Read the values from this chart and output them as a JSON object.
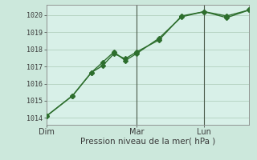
{
  "xlabel": "Pression niveau de la mer( hPa )",
  "bg_color": "#cce8dc",
  "plot_bg_color": "#d8f0e8",
  "grid_color": "#b8d4c4",
  "line_color": "#2d6e2d",
  "axis_color": "#3a3a3a",
  "ylim": [
    1013.6,
    1020.6
  ],
  "xlim": [
    0,
    108
  ],
  "yticks": [
    1014,
    1015,
    1016,
    1017,
    1018,
    1019,
    1020
  ],
  "day_labels": [
    "Dim",
    "Mar",
    "Lun"
  ],
  "day_positions": [
    0,
    48,
    84
  ],
  "vline_positions": [
    48,
    84
  ],
  "series1_x": [
    0,
    14,
    24,
    30,
    36,
    42,
    48,
    60,
    72,
    84,
    96,
    108
  ],
  "series1_y": [
    1014.1,
    1015.3,
    1016.65,
    1017.05,
    1017.75,
    1017.45,
    1017.85,
    1018.55,
    1019.95,
    1020.2,
    1019.85,
    1020.3
  ],
  "series2_x": [
    0,
    14,
    24,
    30,
    36,
    42,
    48,
    60,
    72,
    84,
    96,
    108
  ],
  "series2_y": [
    1014.1,
    1015.3,
    1016.65,
    1017.25,
    1017.85,
    1017.35,
    1017.75,
    1018.65,
    1019.9,
    1020.2,
    1019.95,
    1020.3
  ],
  "marker_size": 3,
  "linewidth": 1.0,
  "tick_fontsize": 6,
  "xlabel_fontsize": 7.5,
  "xtick_fontsize": 7
}
